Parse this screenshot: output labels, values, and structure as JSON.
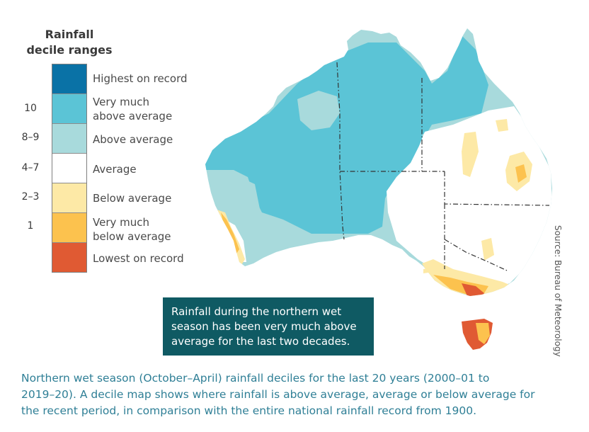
{
  "legend": {
    "title_line1": "Rainfall",
    "title_line2": "decile ranges",
    "bands": [
      {
        "label_lines": [
          "Highest on record"
        ],
        "decile": "",
        "color": "#0a72a6"
      },
      {
        "label_lines": [
          "Very much",
          "above average"
        ],
        "decile": "10",
        "color": "#5bc4d6"
      },
      {
        "label_lines": [
          "Above average"
        ],
        "decile": "8–9",
        "color": "#a8dadc"
      },
      {
        "label_lines": [
          "Average"
        ],
        "decile": "4–7",
        "color": "#ffffff"
      },
      {
        "label_lines": [
          "Below average"
        ],
        "decile": "2–3",
        "color": "#fde9a6"
      },
      {
        "label_lines": [
          "Very much",
          "below average"
        ],
        "decile": "1",
        "color": "#fcc24e"
      },
      {
        "label_lines": [
          "Lowest on record"
        ],
        "decile": "",
        "color": "#e05a33"
      }
    ]
  },
  "callout": {
    "lines": [
      "Rainfall during the northern wet",
      "season has been very much above",
      "average for the last two decades."
    ]
  },
  "source": "Source: Bureau of Meteorology",
  "caption": {
    "lines": [
      "Northern wet season (October–April) rainfall deciles for the last 20 years (2000–01 to",
      "2019–20). A decile map shows where rainfall is above average, average or below average for",
      "the recent period, in comparison with the entire national rainfall record from 1900."
    ]
  }
}
